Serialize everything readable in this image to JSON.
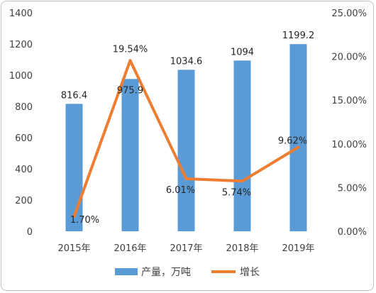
{
  "chart_data": {
    "type": "bar",
    "categories": [
      "2015年",
      "2016年",
      "2017年",
      "2018年",
      "2019年"
    ],
    "series": [
      {
        "name": "产量，万吨",
        "type": "bar",
        "axis": "left",
        "values": [
          816.4,
          975.9,
          1034.6,
          1094,
          1199.2
        ],
        "labels": [
          "816.4",
          "975.9",
          "1034.6",
          "1094",
          "1199.2"
        ]
      },
      {
        "name": "增长",
        "type": "line",
        "axis": "right",
        "values": [
          1.7,
          19.54,
          6.01,
          5.74,
          9.62
        ],
        "labels": [
          "1.70%",
          "19.54%",
          "6.01%",
          "5.74%",
          "9.62%"
        ]
      }
    ],
    "y_left": {
      "lim": [
        0,
        1400
      ],
      "ticks": [
        "0",
        "200",
        "400",
        "600",
        "800",
        "1000",
        "1200",
        "1400"
      ]
    },
    "y_right": {
      "lim": [
        0,
        25
      ],
      "ticks": [
        "0.00%",
        "5.00%",
        "10.00%",
        "15.00%",
        "20.00%",
        "25.00%"
      ]
    },
    "colors": {
      "bar": "#5b9bd5",
      "line": "#ed7d31"
    },
    "grid": false,
    "legend": "bottom"
  }
}
